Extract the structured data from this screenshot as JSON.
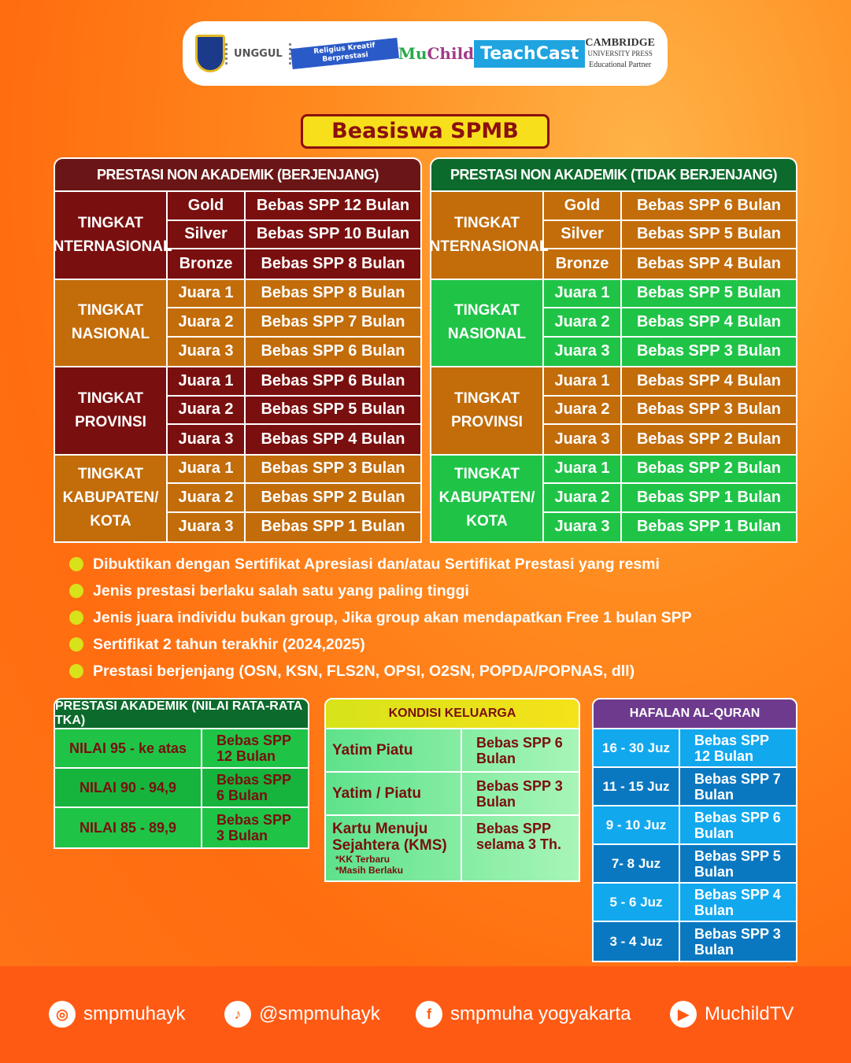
{
  "logos": {
    "unggul": "UNGGUL",
    "religius": "Religius Kreatif Berprestasi",
    "muchild_a": "Mu",
    "muchild_b": "Child",
    "teachcast": "TeachCast",
    "cambridge_a": "CAMBRIDGE",
    "cambridge_b": "UNIVERSITY PRESS",
    "cambridge_c": "Educational Partner"
  },
  "title": "Beasiswa SPMB",
  "tables": [
    {
      "header": "PRESTASI NON AKADEMIK (BERJENJANG)",
      "header_color": "#6b1616",
      "groups": [
        {
          "label": "TINGKAT INTERNASIONAL",
          "color": "#7a0f0f",
          "rows": [
            [
              "Gold",
              "Bebas SPP 12 Bulan"
            ],
            [
              "Silver",
              "Bebas SPP 10 Bulan"
            ],
            [
              "Bronze",
              "Bebas SPP 8 Bulan"
            ]
          ]
        },
        {
          "label": "TINGKAT NASIONAL",
          "color": "#c26c0a",
          "rows": [
            [
              "Juara 1",
              "Bebas SPP 8 Bulan"
            ],
            [
              "Juara 2",
              "Bebas SPP 7 Bulan"
            ],
            [
              "Juara 3",
              "Bebas SPP 6 Bulan"
            ]
          ]
        },
        {
          "label": "TINGKAT PROVINSI",
          "color": "#7a0f0f",
          "rows": [
            [
              "Juara 1",
              "Bebas SPP 6 Bulan"
            ],
            [
              "Juara 2",
              "Bebas SPP 5 Bulan"
            ],
            [
              "Juara 3",
              "Bebas SPP 4 Bulan"
            ]
          ]
        },
        {
          "label": "TINGKAT KABUPATEN/ KOTA",
          "color": "#c26c0a",
          "rows": [
            [
              "Juara 1",
              "Bebas SPP 3 Bulan"
            ],
            [
              "Juara 2",
              "Bebas SPP 2 Bulan"
            ],
            [
              "Juara 3",
              "Bebas SPP 1 Bulan"
            ]
          ]
        }
      ]
    },
    {
      "header": "PRESTASI NON AKADEMIK (TIDAK BERJENJANG)",
      "header_color": "#0c6a2c",
      "groups": [
        {
          "label": "TINGKAT INTERNASIONAL",
          "color": "#c26c0a",
          "rows": [
            [
              "Gold",
              "Bebas SPP 6 Bulan"
            ],
            [
              "Silver",
              "Bebas SPP 5 Bulan"
            ],
            [
              "Bronze",
              "Bebas SPP 4 Bulan"
            ]
          ]
        },
        {
          "label": "TINGKAT NASIONAL",
          "color": "#1fc447",
          "rows": [
            [
              "Juara 1",
              "Bebas SPP 5 Bulan"
            ],
            [
              "Juara 2",
              "Bebas SPP 4 Bulan"
            ],
            [
              "Juara 3",
              "Bebas SPP 3 Bulan"
            ]
          ]
        },
        {
          "label": "TINGKAT PROVINSI",
          "color": "#c26c0a",
          "rows": [
            [
              "Juara 1",
              "Bebas SPP 4 Bulan"
            ],
            [
              "Juara 2",
              "Bebas SPP 3 Bulan"
            ],
            [
              "Juara 3",
              "Bebas SPP 2 Bulan"
            ]
          ]
        },
        {
          "label": "TINGKAT KABUPATEN/ KOTA",
          "color": "#1fc447",
          "rows": [
            [
              "Juara 1",
              "Bebas SPP 2 Bulan"
            ],
            [
              "Juara 2",
              "Bebas SPP 1 Bulan"
            ],
            [
              "Juara 3",
              "Bebas SPP 1 Bulan"
            ]
          ]
        }
      ]
    }
  ],
  "notes": [
    "Dibuktikan dengan Sertifikat Apresiasi dan/atau Sertifikat Prestasi yang resmi",
    "Jenis prestasi berlaku salah satu yang paling tinggi",
    "Jenis juara individu bukan group, Jika group akan mendapatkan Free 1 bulan SPP",
    "Sertifikat 2 tahun terakhir (2024,2025)",
    "Prestasi berjenjang (OSN, KSN, FLS2N, OPSI, O2SN, POPDA/POPNAS, dll)"
  ],
  "akademik": {
    "header": "PRESTASI AKADEMIK (NILAI RATA-RATA TKA)",
    "rows": [
      [
        "NILAI 95 - ke atas",
        "Bebas SPP 12 Bulan"
      ],
      [
        "NILAI 90 - 94,9",
        "Bebas SPP 6 Bulan"
      ],
      [
        "NILAI 85 - 89,9",
        "Bebas SPP 3 Bulan"
      ]
    ]
  },
  "keluarga": {
    "header": "KONDISI KELUARGA",
    "rows": [
      [
        "Yatim Piatu",
        "Bebas SPP 6 Bulan"
      ],
      [
        "Yatim / Piatu",
        "Bebas SPP 3 Bulan"
      ],
      [
        "Kartu Menuju Sejahtera (KMS)",
        "Bebas SPP selama 3 Th."
      ]
    ],
    "kms_notes": [
      "*KK Terbaru",
      "*Masih Berlaku"
    ]
  },
  "hafalan": {
    "header": "HAFALAN AL-QURAN",
    "rows": [
      [
        "16 - 30 Juz",
        "Bebas SPP 12 Bulan"
      ],
      [
        "11 - 15 Juz",
        "Bebas SPP 7 Bulan"
      ],
      [
        "9 - 10 Juz",
        "Bebas SPP 6 Bulan"
      ],
      [
        "7- 8 Juz",
        "Bebas SPP 5 Bulan"
      ],
      [
        "5 - 6 Juz",
        "Bebas SPP 4 Bulan"
      ],
      [
        "3 - 4 Juz",
        "Bebas SPP 3 Bulan"
      ]
    ]
  },
  "social": [
    {
      "icon": "instagram-icon",
      "glyph": "◎",
      "label": "smpmuhayk"
    },
    {
      "icon": "tiktok-icon",
      "glyph": "♪",
      "label": "@smpmuhayk"
    },
    {
      "icon": "facebook-icon",
      "glyph": "f",
      "label": "smpmuha yogyakarta"
    },
    {
      "icon": "youtube-icon",
      "glyph": "▶",
      "label": "MuchildTV"
    }
  ]
}
